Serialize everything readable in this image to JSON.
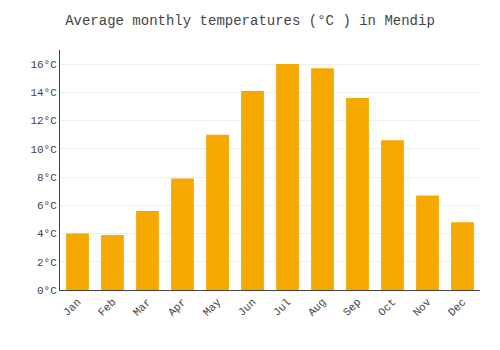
{
  "chart_data": {
    "type": "bar",
    "title": "Average monthly temperatures (°C ) in Mendip",
    "categories": [
      "Jan",
      "Feb",
      "Mar",
      "Apr",
      "May",
      "Jun",
      "Jul",
      "Aug",
      "Sep",
      "Oct",
      "Nov",
      "Dec"
    ],
    "values": [
      4.0,
      3.9,
      5.6,
      7.9,
      11.0,
      14.1,
      16.0,
      15.7,
      13.6,
      10.6,
      6.7,
      4.8
    ],
    "color": "#F5A800",
    "ylim": [
      0,
      17
    ],
    "yticks": [
      {
        "value": 0,
        "label": "0°C"
      },
      {
        "value": 2,
        "label": "2°C"
      },
      {
        "value": 4,
        "label": "4°C"
      },
      {
        "value": 6,
        "label": "6°C"
      },
      {
        "value": 8,
        "label": "8°C"
      },
      {
        "value": 10,
        "label": "10°C"
      },
      {
        "value": 12,
        "label": "12°C"
      },
      {
        "value": 14,
        "label": "14°C"
      },
      {
        "value": 16,
        "label": "16°C"
      }
    ],
    "grid": true
  }
}
